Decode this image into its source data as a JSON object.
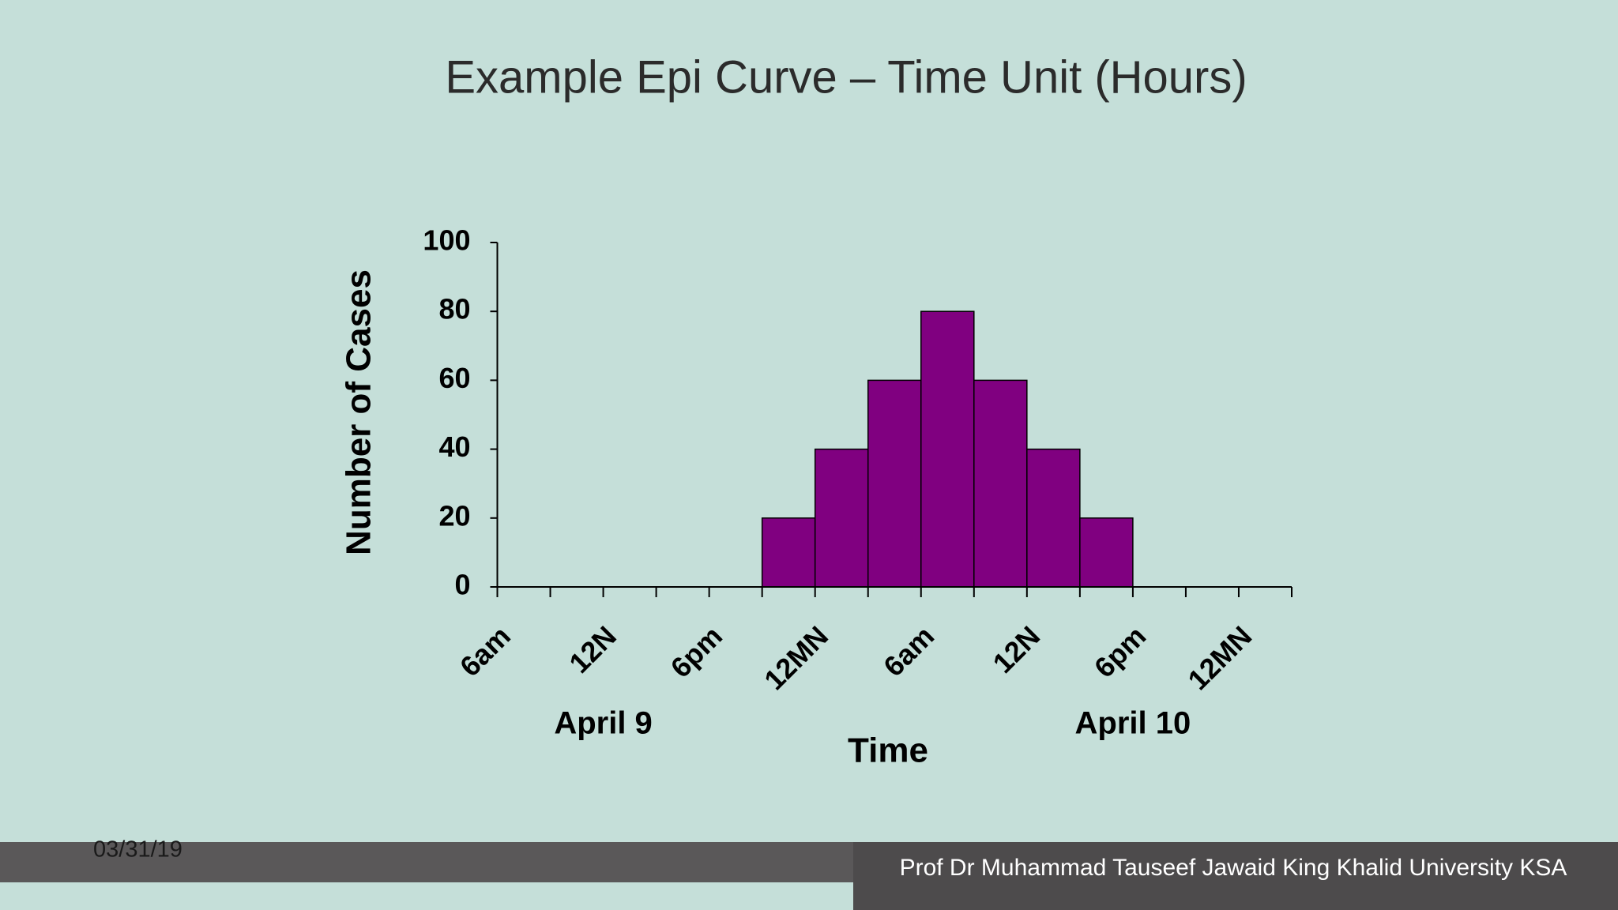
{
  "slide": {
    "title": "Example Epi Curve – Time Unit (Hours)",
    "date": "03/31/19",
    "footer": "Prof Dr Muhammad Tauseef Jawaid King Khalid University KSA"
  },
  "chart_data": {
    "type": "histogram",
    "categories": [
      "6am",
      null,
      "12N",
      null,
      "6pm",
      null,
      "12MN",
      null,
      "6am",
      null,
      "12N",
      null,
      "6pm",
      null,
      "12MN"
    ],
    "values": [
      0,
      0,
      0,
      0,
      0,
      20,
      40,
      60,
      80,
      60,
      40,
      20,
      0,
      0,
      0
    ],
    "color": "#800080",
    "ylim": [
      0,
      100
    ],
    "yticks": [
      0,
      20,
      40,
      60,
      80,
      100
    ],
    "ylabel": "Number of Cases",
    "xlabel": "Time",
    "group_labels": [
      "April 9",
      "April 10"
    ]
  }
}
